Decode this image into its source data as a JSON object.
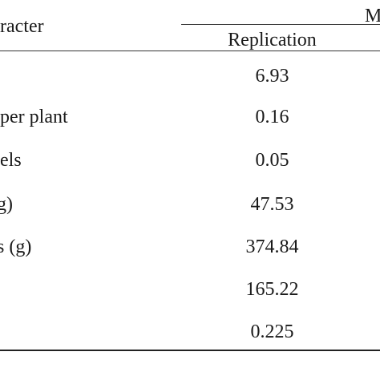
{
  "table": {
    "header": {
      "character": "racter",
      "group": "M",
      "replication": "Replication"
    },
    "rows": [
      {
        "character": "",
        "value": "6.93"
      },
      {
        "character": "per plant",
        "value": "0.16"
      },
      {
        "character": "els",
        "value": "0.05"
      },
      {
        "character": "g)",
        "value": "47.53"
      },
      {
        "character": "s (g)",
        "value": "374.84"
      },
      {
        "character": "",
        "value": "165.22"
      },
      {
        "character": "",
        "value": "0.225"
      }
    ]
  }
}
